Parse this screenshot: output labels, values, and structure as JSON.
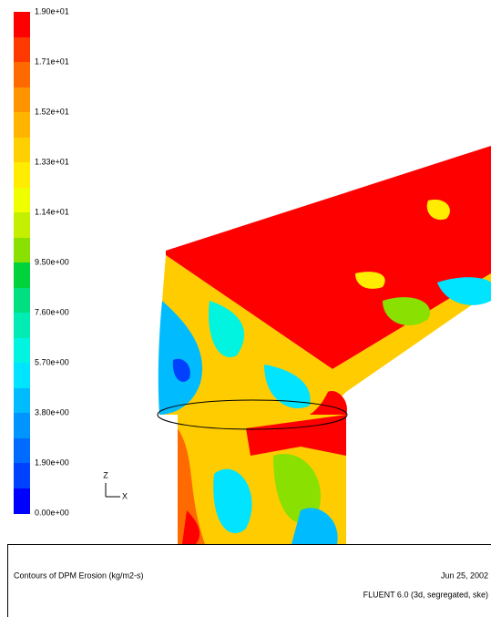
{
  "colorbar": {
    "labels": [
      "1.90e+01",
      "1.71e+01",
      "1.52e+01",
      "1.33e+01",
      "1.14e+01",
      "9.50e+00",
      "7.60e+00",
      "5.70e+00",
      "3.80e+00",
      "1.90e+00",
      "0.00e+00"
    ]
  },
  "axes": {
    "z": "Z",
    "x": "X"
  },
  "footer": {
    "title": "Contours of DPM Erosion (kg/m2-s)",
    "date": "Jun 25, 2002",
    "solver": "FLUENT 6.0 (3d, segregated, ske)"
  }
}
